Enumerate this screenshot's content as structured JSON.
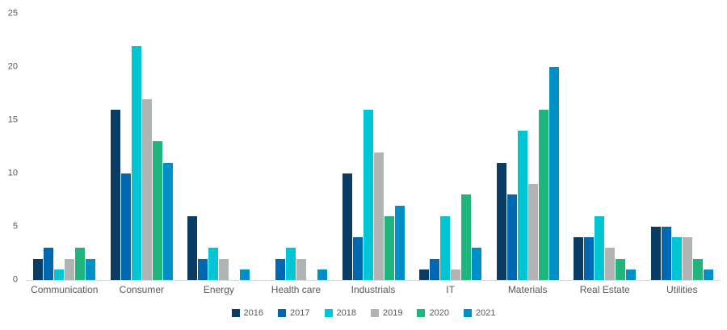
{
  "chart_data": {
    "type": "bar",
    "categories": [
      "Communication",
      "Consumer",
      "Energy",
      "Health care",
      "Industrials",
      "IT",
      "Materials",
      "Real Estate",
      "Utilities"
    ],
    "series": [
      {
        "name": "2016",
        "color": "#0b3c63",
        "values": [
          2,
          16,
          6,
          0,
          10,
          1,
          11,
          4,
          5
        ]
      },
      {
        "name": "2017",
        "color": "#0067b1",
        "values": [
          3,
          10,
          2,
          2,
          4,
          2,
          8,
          4,
          5
        ]
      },
      {
        "name": "2018",
        "color": "#00c5d4",
        "values": [
          1,
          22,
          3,
          3,
          16,
          6,
          14,
          6,
          4
        ]
      },
      {
        "name": "2019",
        "color": "#b1b4b4",
        "values": [
          2,
          17,
          2,
          2,
          12,
          1,
          9,
          3,
          4
        ]
      },
      {
        "name": "2020",
        "color": "#1fb57d",
        "values": [
          3,
          13,
          0,
          0,
          6,
          8,
          16,
          2,
          2
        ]
      },
      {
        "name": "2021",
        "color": "#0090c6",
        "values": [
          2,
          11,
          1,
          1,
          7,
          3,
          20,
          1,
          1
        ]
      }
    ],
    "title": "",
    "xlabel": "",
    "ylabel": "",
    "ylim": [
      0,
      25
    ],
    "yticks": [
      0,
      5,
      10,
      15,
      20,
      25
    ],
    "grid": false,
    "legend_position": "bottom",
    "axis_line_color": "#d9d9d9",
    "text_color": "#595959"
  }
}
